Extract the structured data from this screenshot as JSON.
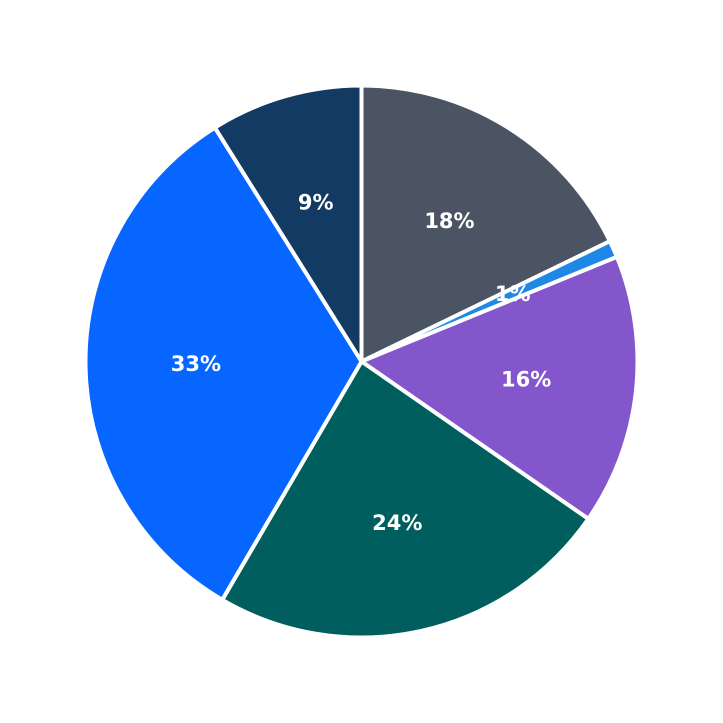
{
  "chart_data": {
    "type": "pie",
    "start_angle_deg": 90,
    "direction": "clockwise",
    "slices": [
      {
        "label": "18%",
        "value": 18,
        "color": "#4a5463"
      },
      {
        "label": "1%",
        "value": 1,
        "color": "#1e88e5"
      },
      {
        "label": "16%",
        "value": 16,
        "color": "#8456cc"
      },
      {
        "label": "24%",
        "value": 24,
        "color": "#005f5e"
      },
      {
        "label": "33%",
        "value": 33,
        "color": "#0666ff"
      },
      {
        "label": "9%",
        "value": 9,
        "color": "#133a62"
      }
    ]
  }
}
